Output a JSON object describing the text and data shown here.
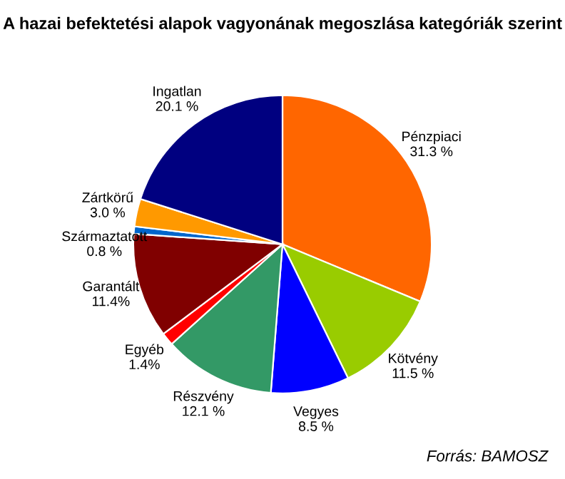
{
  "chart_data": {
    "type": "pie",
    "title": "A hazai befektetési alapok vagyonának megoszlása kategóriák szerint",
    "categories": [
      "Pénzpiaci",
      "Kötvény",
      "Vegyes",
      "Részvény",
      "Egyéb",
      "Garantált",
      "Származtatott",
      "Zártkörű",
      "Ingatlan"
    ],
    "values": [
      31.3,
      11.5,
      8.5,
      12.1,
      1.4,
      11.4,
      0.8,
      3.0,
      20.1
    ],
    "colors": [
      "#ff6600",
      "#99cc00",
      "#0000ff",
      "#339966",
      "#ff0000",
      "#800000",
      "#0066cc",
      "#ff9900",
      "#000080"
    ],
    "value_labels": [
      "31.3 %",
      "11.5 %",
      "8.5 %",
      "12.1 %",
      "1.4%",
      "11.4%",
      "0.8 %",
      "3.0 %",
      "20.1 %"
    ],
    "annotations": [
      "Forrás: BAMOSZ"
    ]
  }
}
